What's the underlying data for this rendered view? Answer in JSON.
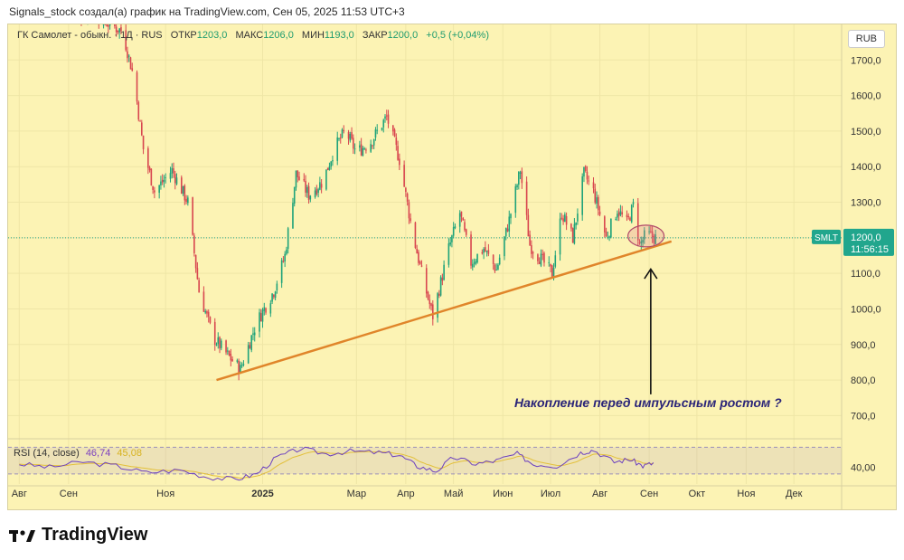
{
  "header": {
    "caption": "Signals_stock создал(а) график на TradingView.com, Сен 05, 2025 11:53 UTC+3"
  },
  "legend": {
    "symbol": "ГК Самолет - обыкн. · 1Д · RUS",
    "open_label": "ОТКР",
    "open": "1203,0",
    "high_label": "МАКС",
    "high": "1206,0",
    "low_label": "МИН",
    "low": "1193,0",
    "close_label": "ЗАКР",
    "close": "1200,0",
    "change": "+0,5 (+0,04%)"
  },
  "currency": "RUB",
  "price_tag": {
    "ticker": "SMLT",
    "price": "1200,0",
    "countdown": "11:56:15"
  },
  "annotation": "Накопление перед импульсным ростом ?",
  "rsi": {
    "label": "RSI (14, close)",
    "value": "46,74",
    "ma_value": "45,08",
    "axis_label": "40,00"
  },
  "logo": {
    "text": "TradingView"
  },
  "colors": {
    "up": "#1fa37a",
    "down": "#d8464f",
    "trendline": "#e0852a",
    "rsi": "#6b3fc0",
    "rsi_ma": "#e3c03a",
    "background": "#fcf3b4"
  },
  "chart_data": {
    "type": "candlestick",
    "y_axis": {
      "range": [
        640,
        1800
      ],
      "ticks": [
        700,
        800,
        900,
        1000,
        1100,
        1200,
        1300,
        1400,
        1500,
        1600,
        1700
      ],
      "tick_labels": [
        "700,0",
        "800,0",
        "900,0",
        "1000,0",
        "1100,0",
        "1200,0",
        "1300,0",
        "1400,0",
        "1500,0",
        "1600,0",
        "1700,0"
      ]
    },
    "x_axis": {
      "range": [
        "2024-07-25",
        "2025-12-31"
      ],
      "ticks": [
        {
          "date": "2024-08-01",
          "label": "Авг"
        },
        {
          "date": "2024-09-01",
          "label": "Сен"
        },
        {
          "date": "2024-11-01",
          "label": "Ноя"
        },
        {
          "date": "2025-01-01",
          "label": "2025"
        },
        {
          "date": "2025-03-01",
          "label": "Мар"
        },
        {
          "date": "2025-04-01",
          "label": "Апр"
        },
        {
          "date": "2025-05-01",
          "label": "Май"
        },
        {
          "date": "2025-06-01",
          "label": "Июн"
        },
        {
          "date": "2025-07-01",
          "label": "Июл"
        },
        {
          "date": "2025-08-01",
          "label": "Авг"
        },
        {
          "date": "2025-09-01",
          "label": "Сен"
        },
        {
          "date": "2025-10-01",
          "label": "Окт"
        },
        {
          "date": "2025-11-01",
          "label": "Ноя"
        },
        {
          "date": "2025-12-01",
          "label": "Дек"
        }
      ]
    },
    "price_path": [
      [
        "2024-09-01",
        1820
      ],
      [
        "2024-09-15",
        1830
      ],
      [
        "2024-10-05",
        1780
      ],
      [
        "2024-10-12",
        1650
      ],
      [
        "2024-10-18",
        1450
      ],
      [
        "2024-10-25",
        1330
      ],
      [
        "2024-11-05",
        1390
      ],
      [
        "2024-11-15",
        1300
      ],
      [
        "2024-11-22",
        1050
      ],
      [
        "2024-12-01",
        920
      ],
      [
        "2024-12-10",
        870
      ],
      [
        "2024-12-18",
        830
      ],
      [
        "2024-12-28",
        960
      ],
      [
        "2025-01-08",
        1050
      ],
      [
        "2025-01-15",
        1150
      ],
      [
        "2025-01-22",
        1380
      ],
      [
        "2025-01-30",
        1320
      ],
      [
        "2025-02-08",
        1360
      ],
      [
        "2025-02-15",
        1450
      ],
      [
        "2025-02-22",
        1500
      ],
      [
        "2025-03-01",
        1440
      ],
      [
        "2025-03-10",
        1470
      ],
      [
        "2025-03-20",
        1540
      ],
      [
        "2025-03-28",
        1420
      ],
      [
        "2025-04-05",
        1220
      ],
      [
        "2025-04-12",
        1080
      ],
      [
        "2025-04-18",
        980
      ],
      [
        "2025-04-28",
        1170
      ],
      [
        "2025-05-05",
        1270
      ],
      [
        "2025-05-12",
        1130
      ],
      [
        "2025-05-20",
        1170
      ],
      [
        "2025-05-28",
        1110
      ],
      [
        "2025-06-05",
        1250
      ],
      [
        "2025-06-12",
        1390
      ],
      [
        "2025-06-18",
        1180
      ],
      [
        "2025-06-25",
        1140
      ],
      [
        "2025-07-02",
        1100
      ],
      [
        "2025-07-08",
        1270
      ],
      [
        "2025-07-15",
        1200
      ],
      [
        "2025-07-22",
        1380
      ],
      [
        "2025-07-28",
        1330
      ],
      [
        "2025-08-05",
        1200
      ],
      [
        "2025-08-12",
        1280
      ],
      [
        "2025-08-18",
        1240
      ],
      [
        "2025-08-22",
        1290
      ],
      [
        "2025-08-26",
        1180
      ],
      [
        "2025-08-30",
        1210
      ],
      [
        "2025-09-05",
        1200
      ]
    ],
    "trendline": [
      [
        "2024-12-03",
        800
      ],
      [
        "2025-09-15",
        1190
      ]
    ],
    "last_price": 1200,
    "rsi_range": [
      15,
      80
    ],
    "rsi_path": [
      [
        "2024-08-01",
        45
      ],
      [
        "2024-08-20",
        40
      ],
      [
        "2024-09-10",
        48
      ],
      [
        "2024-10-01",
        42
      ],
      [
        "2024-10-20",
        32
      ],
      [
        "2024-11-10",
        36
      ],
      [
        "2024-11-28",
        25
      ],
      [
        "2024-12-15",
        22
      ],
      [
        "2024-12-28",
        30
      ],
      [
        "2025-01-10",
        55
      ],
      [
        "2025-01-25",
        68
      ],
      [
        "2025-02-10",
        60
      ],
      [
        "2025-02-25",
        64
      ],
      [
        "2025-03-15",
        62
      ],
      [
        "2025-03-28",
        58
      ],
      [
        "2025-04-08",
        42
      ],
      [
        "2025-04-20",
        34
      ],
      [
        "2025-05-01",
        55
      ],
      [
        "2025-05-15",
        45
      ],
      [
        "2025-05-28",
        50
      ],
      [
        "2025-06-10",
        60
      ],
      [
        "2025-06-20",
        45
      ],
      [
        "2025-07-05",
        42
      ],
      [
        "2025-07-20",
        62
      ],
      [
        "2025-07-28",
        66
      ],
      [
        "2025-08-10",
        48
      ],
      [
        "2025-08-20",
        52
      ],
      [
        "2025-08-28",
        42
      ],
      [
        "2025-09-05",
        47
      ]
    ]
  }
}
